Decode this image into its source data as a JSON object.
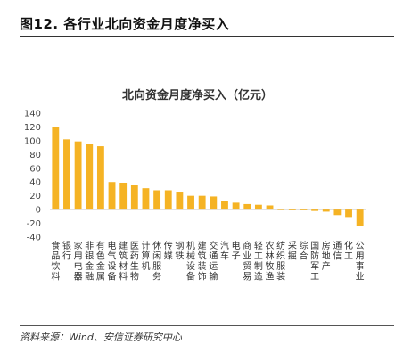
{
  "figure_title": "图12. 各行业北向资金月度净买入",
  "source_note": "资料来源：Wind、安信证券研究中心",
  "chart_data": {
    "type": "bar",
    "title": "北向资金月度净买入（亿元）",
    "xlabel": "",
    "ylabel": "",
    "ylim": [
      -40,
      140
    ],
    "yticks": [
      -40,
      -20,
      0,
      20,
      40,
      60,
      80,
      100,
      120,
      140
    ],
    "bar_color": "#F5B324",
    "grid": false,
    "categories": [
      "食品饮料",
      "银行",
      "家用电器",
      "非银金融",
      "有色金属",
      "电气设备",
      "建筑材料",
      "医药生物",
      "计算机",
      "休闲服务",
      "传媒",
      "钢铁",
      "机械设备",
      "建筑装饰",
      "交通运输",
      "汽车",
      "电子",
      "商业贸易",
      "轻工制造",
      "农林牧渔",
      "纺织服装",
      "采掘",
      "综合",
      "国防军工",
      "房地产",
      "通信",
      "化工",
      "公用事业"
    ],
    "values": [
      120,
      102,
      99,
      95,
      92,
      40,
      39,
      36,
      31,
      28,
      28,
      26,
      20,
      20,
      19,
      13,
      10,
      8,
      7,
      6,
      0,
      -1,
      -1,
      -2,
      -3,
      -8,
      -12,
      -24
    ]
  }
}
